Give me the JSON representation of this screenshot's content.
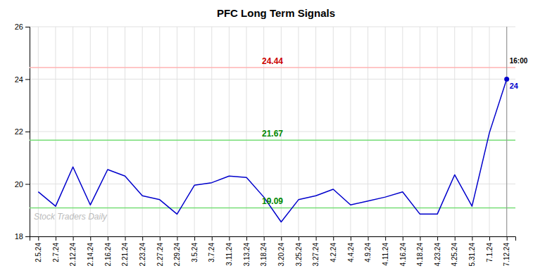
{
  "chart_data": {
    "type": "line",
    "title": "PFC Long Term Signals",
    "categories": [
      "2.5.24",
      "2.7.24",
      "2.12.24",
      "2.14.24",
      "2.16.24",
      "2.21.24",
      "2.23.24",
      "2.27.24",
      "2.29.24",
      "3.5.24",
      "3.7.24",
      "3.11.24",
      "3.13.24",
      "3.18.24",
      "3.20.24",
      "3.25.24",
      "3.27.24",
      "4.2.24",
      "4.4.24",
      "4.9.24",
      "4.11.24",
      "4.16.24",
      "4.18.24",
      "4.23.24",
      "4.25.24",
      "5.31.24",
      "7.1.24",
      "7.12.24"
    ],
    "values": [
      19.7,
      19.15,
      20.65,
      19.2,
      20.55,
      20.3,
      19.55,
      19.4,
      18.85,
      19.95,
      20.05,
      20.3,
      20.25,
      19.5,
      18.55,
      19.4,
      19.55,
      19.8,
      19.2,
      19.35,
      19.5,
      19.7,
      18.85,
      18.85,
      20.35,
      19.15,
      21.95,
      24.0
    ],
    "color": "#0000cc",
    "ylim": [
      18,
      26
    ],
    "yticks": [
      18,
      20,
      22,
      24,
      26
    ],
    "grid": true,
    "reference_lines": [
      {
        "value": 24.44,
        "label": "24.44",
        "color": "#ffb3b3",
        "label_color": "#cc0000"
      },
      {
        "value": 21.67,
        "label": "21.67",
        "color": "#77dd77",
        "label_color": "#008800"
      },
      {
        "value": 19.09,
        "label": "19.09",
        "color": "#77dd77",
        "label_color": "#008800"
      }
    ],
    "annotations": [
      {
        "text": "16:00",
        "color": "#000000"
      },
      {
        "text": "24",
        "color": "#0000cc"
      }
    ],
    "watermark": "Stock Traders Daily"
  }
}
